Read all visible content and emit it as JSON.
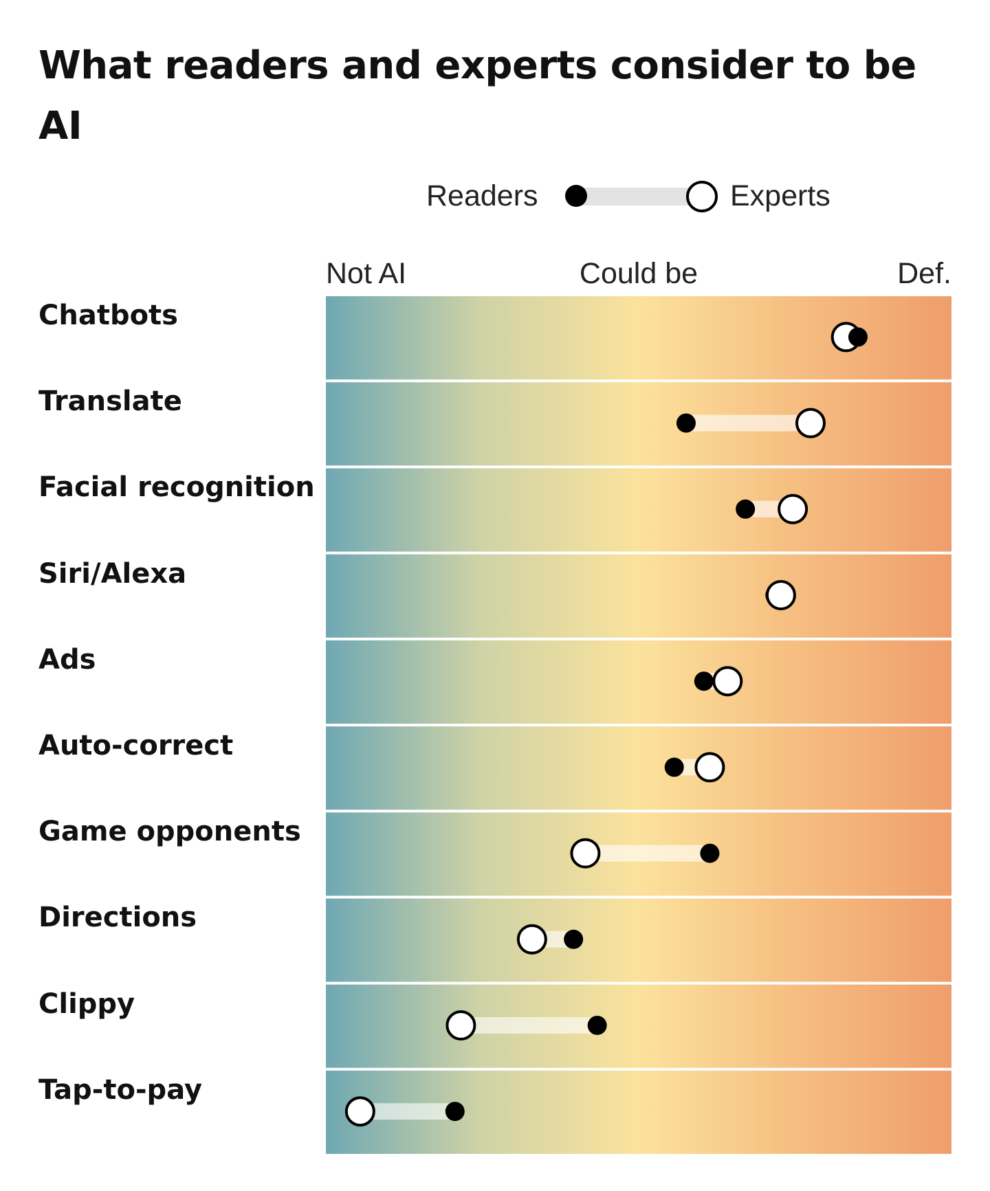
{
  "chart_data": {
    "type": "dumbbell",
    "title": "What readers and experts consider to be AI",
    "legend": {
      "readers_label": "Readers",
      "experts_label": "Experts",
      "position": "top-center"
    },
    "scale_labels": {
      "low": "Not AI",
      "mid": "Could be",
      "high": "Def."
    },
    "xlim": [
      0,
      100
    ],
    "gradient_colors": [
      "#6fa8b3",
      "#cfd3a6",
      "#fbe29c",
      "#f6bf82",
      "#ef9e6b"
    ],
    "categories": [
      "Chatbots",
      "Translate",
      "Facial recognition",
      "Siri/Alexa",
      "Ads",
      "Auto-correct",
      "Game opponents",
      "Directions",
      "Clippy",
      "Tap-to-pay"
    ],
    "series": [
      {
        "name": "Readers",
        "marker": "filled",
        "values": [
          87,
          58,
          68,
          73,
          61,
          56,
          62,
          39,
          43,
          19
        ]
      },
      {
        "name": "Experts",
        "marker": "open",
        "values": [
          85,
          79,
          76,
          74,
          65,
          62,
          41,
          32,
          20,
          3
        ]
      }
    ]
  }
}
